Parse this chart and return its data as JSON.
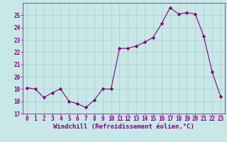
{
  "x": [
    0,
    1,
    2,
    3,
    4,
    5,
    6,
    7,
    8,
    9,
    10,
    11,
    12,
    13,
    14,
    15,
    16,
    17,
    18,
    19,
    20,
    21,
    22,
    23
  ],
  "y": [
    19.1,
    19.0,
    18.3,
    18.7,
    19.0,
    18.0,
    17.8,
    17.5,
    18.1,
    19.0,
    19.0,
    22.3,
    22.3,
    22.5,
    22.8,
    23.2,
    24.3,
    25.6,
    25.1,
    25.2,
    25.1,
    23.3,
    20.4,
    18.4
  ],
  "line_color": "#800080",
  "marker": "D",
  "marker_size": 2.2,
  "bg_color": "#c8e8e8",
  "grid_color": "#aacccc",
  "xlabel": "Windchill (Refroidissement éolien,°C)",
  "xlabel_color": "#800080",
  "tick_color": "#800080",
  "axis_color": "#800080",
  "ylim": [
    17,
    26
  ],
  "xlim": [
    -0.5,
    23.5
  ],
  "yticks": [
    17,
    18,
    19,
    20,
    21,
    22,
    23,
    24,
    25
  ],
  "xticks": [
    0,
    1,
    2,
    3,
    4,
    5,
    6,
    7,
    8,
    9,
    10,
    11,
    12,
    13,
    14,
    15,
    16,
    17,
    18,
    19,
    20,
    21,
    22,
    23
  ],
  "label_fontsize": 6.5,
  "tick_fontsize": 5.5,
  "linewidth": 0.8
}
